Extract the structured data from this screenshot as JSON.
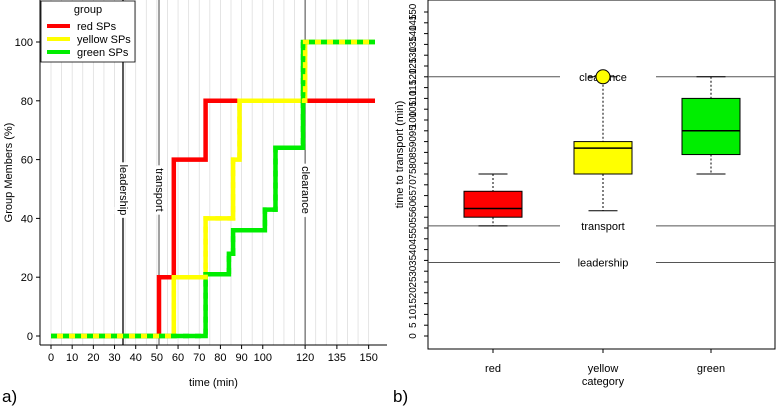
{
  "panel_labels": [
    "a)",
    "b)"
  ],
  "chart_data": [
    {
      "type": "line",
      "line_shape": "step",
      "xlabel": "time (min)",
      "ylabel": "Group Members (%)",
      "xlim": [
        0,
        153
      ],
      "ylim": [
        0,
        100
      ],
      "x_ticks": [
        0,
        10,
        20,
        30,
        40,
        50,
        60,
        70,
        80,
        90,
        100,
        120,
        135,
        150
      ],
      "y_ticks": [
        0,
        20,
        40,
        60,
        80,
        100
      ],
      "grid": "vertical",
      "legend": {
        "position": "top-left",
        "title": "group",
        "entries": [
          "red SPs",
          "yellow SPs",
          "green SPs"
        ]
      },
      "series": [
        {
          "name": "red SPs",
          "color": "#ff0000",
          "points": [
            [
              0,
              0
            ],
            [
              51,
              0
            ],
            [
              51,
              20
            ],
            [
              58,
              20
            ],
            [
              58,
              60
            ],
            [
              73,
              60
            ],
            [
              73,
              80
            ],
            [
              153,
              80
            ]
          ]
        },
        {
          "name": "yellow SPs",
          "color": "#ffff00",
          "points": [
            [
              0,
              0
            ],
            [
              58,
              0
            ],
            [
              58,
              20
            ],
            [
              73,
              20
            ],
            [
              73,
              40
            ],
            [
              86,
              40
            ],
            [
              86,
              60
            ],
            [
              89,
              60
            ],
            [
              89,
              80
            ],
            [
              120,
              80
            ],
            [
              120,
              100
            ],
            [
              153,
              100
            ]
          ]
        },
        {
          "name": "green SPs",
          "color": "#00ee00",
          "points": [
            [
              0,
              0
            ],
            [
              73,
              0
            ],
            [
              73,
              21
            ],
            [
              84,
              21
            ],
            [
              84,
              28
            ],
            [
              86,
              28
            ],
            [
              86,
              36
            ],
            [
              101,
              36
            ],
            [
              101,
              43
            ],
            [
              106,
              43
            ],
            [
              106,
              64
            ],
            [
              119,
              64
            ],
            [
              119,
              100
            ],
            [
              153,
              100
            ]
          ]
        }
      ],
      "vertical_markers": [
        {
          "label": "leadership",
          "x": 34
        },
        {
          "label": "transport",
          "x": 51
        },
        {
          "label": "clearance",
          "x": 120
        }
      ]
    },
    {
      "type": "box",
      "xlabel": "category",
      "ylabel": "time to transport (min)",
      "categories": [
        "red",
        "yellow",
        "green"
      ],
      "ylim": [
        0,
        150
      ],
      "y_ticks": [
        0,
        5,
        10,
        15,
        20,
        25,
        30,
        35,
        40,
        45,
        50,
        55,
        60,
        65,
        70,
        75,
        80,
        85,
        90,
        95,
        100,
        105,
        110,
        115,
        120,
        125,
        130,
        135,
        140,
        145,
        150
      ],
      "boxes": [
        {
          "category": "red",
          "color": "#ff0000",
          "whisker_low": 51,
          "q1": 55,
          "median": 59,
          "q3": 67,
          "whisker_high": 75
        },
        {
          "category": "yellow",
          "color": "#ffff00",
          "whisker_low": 58,
          "q1": 75,
          "median": 87,
          "q3": 90,
          "whisker_high": 120
        },
        {
          "category": "green",
          "color": "#00ee00",
          "whisker_low": 75,
          "q1": 84,
          "median": 95,
          "q3": 110,
          "whisker_high": 120
        }
      ],
      "outliers": [
        {
          "category": "yellow",
          "y": 120,
          "color": "#ffff00"
        }
      ],
      "reference_lines": [
        {
          "label": "clearance",
          "y": 120
        },
        {
          "label": "transport",
          "y": 51
        },
        {
          "label": "leadership",
          "y": 34
        }
      ]
    }
  ]
}
